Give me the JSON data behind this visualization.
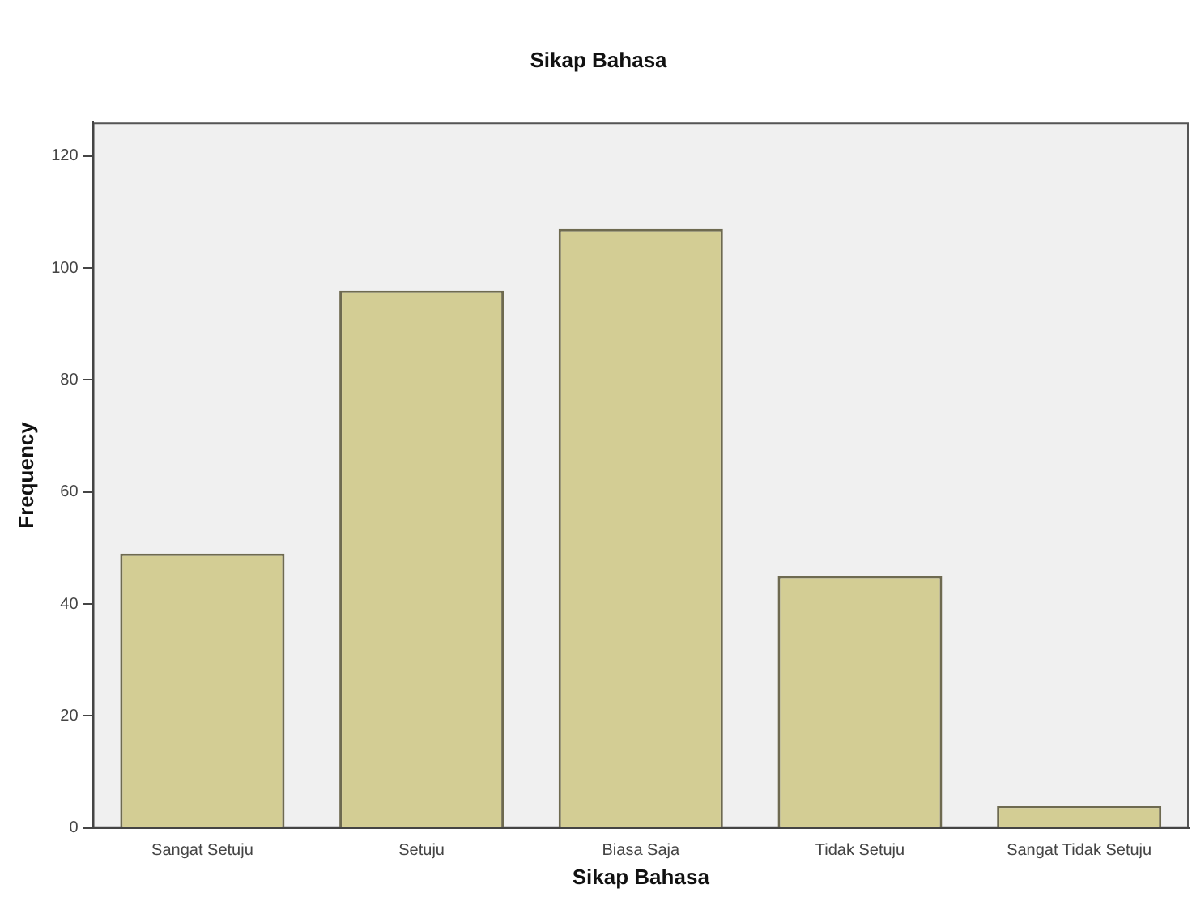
{
  "chart_data": {
    "type": "bar",
    "title": "Sikap Bahasa",
    "xlabel": "Sikap Bahasa",
    "ylabel": "Frequency",
    "categories": [
      "Sangat Setuju",
      "Setuju",
      "Biasa Saja",
      "Tidak Setuju",
      "Sangat Tidak Setuju"
    ],
    "values": [
      49,
      96,
      107,
      45,
      4
    ],
    "color": "#d3cd94",
    "ylim": [
      0,
      126
    ],
    "yticks": [
      0,
      20,
      40,
      60,
      80,
      100,
      120
    ],
    "grid": false,
    "legend": false
  }
}
